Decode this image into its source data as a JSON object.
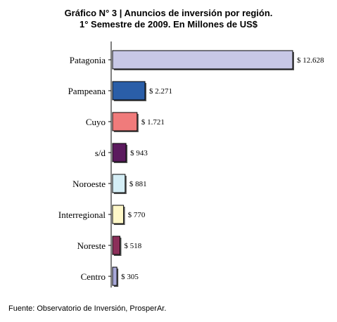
{
  "title_line1": "Gráfico N° 3 | Anuncios de inversión por región.",
  "title_line2": "1° Semestre de 2009. En Millones de US$",
  "source": "Fuente: Observatorio de Inversión, ProsperAr.",
  "chart_data": {
    "type": "bar",
    "orientation": "horizontal",
    "title": "Gráfico N° 3 | Anuncios de inversión por región. 1° Semestre de 2009. En Millones de US$",
    "xlabel": "",
    "ylabel": "",
    "categories": [
      "Patagonia",
      "Pampeana",
      "Cuyo",
      "s/d",
      "Noroeste",
      "Interregional",
      "Noreste",
      "Centro"
    ],
    "values": [
      12628,
      2271,
      1721,
      943,
      881,
      770,
      518,
      305
    ],
    "value_labels": [
      "$ 12.628",
      "$ 2.271",
      "$ 1.721",
      "$ 943",
      "$ 881",
      "$ 770",
      "$ 518",
      "$ 305"
    ],
    "colors": [
      "#c8c8e6",
      "#2a5ea8",
      "#f07b7b",
      "#5b1a5e",
      "#d5eef6",
      "#fff8c8",
      "#8c2f5a",
      "#a8a8d8"
    ],
    "xlim": [
      0,
      12628
    ],
    "grid": false,
    "legend": "none"
  }
}
